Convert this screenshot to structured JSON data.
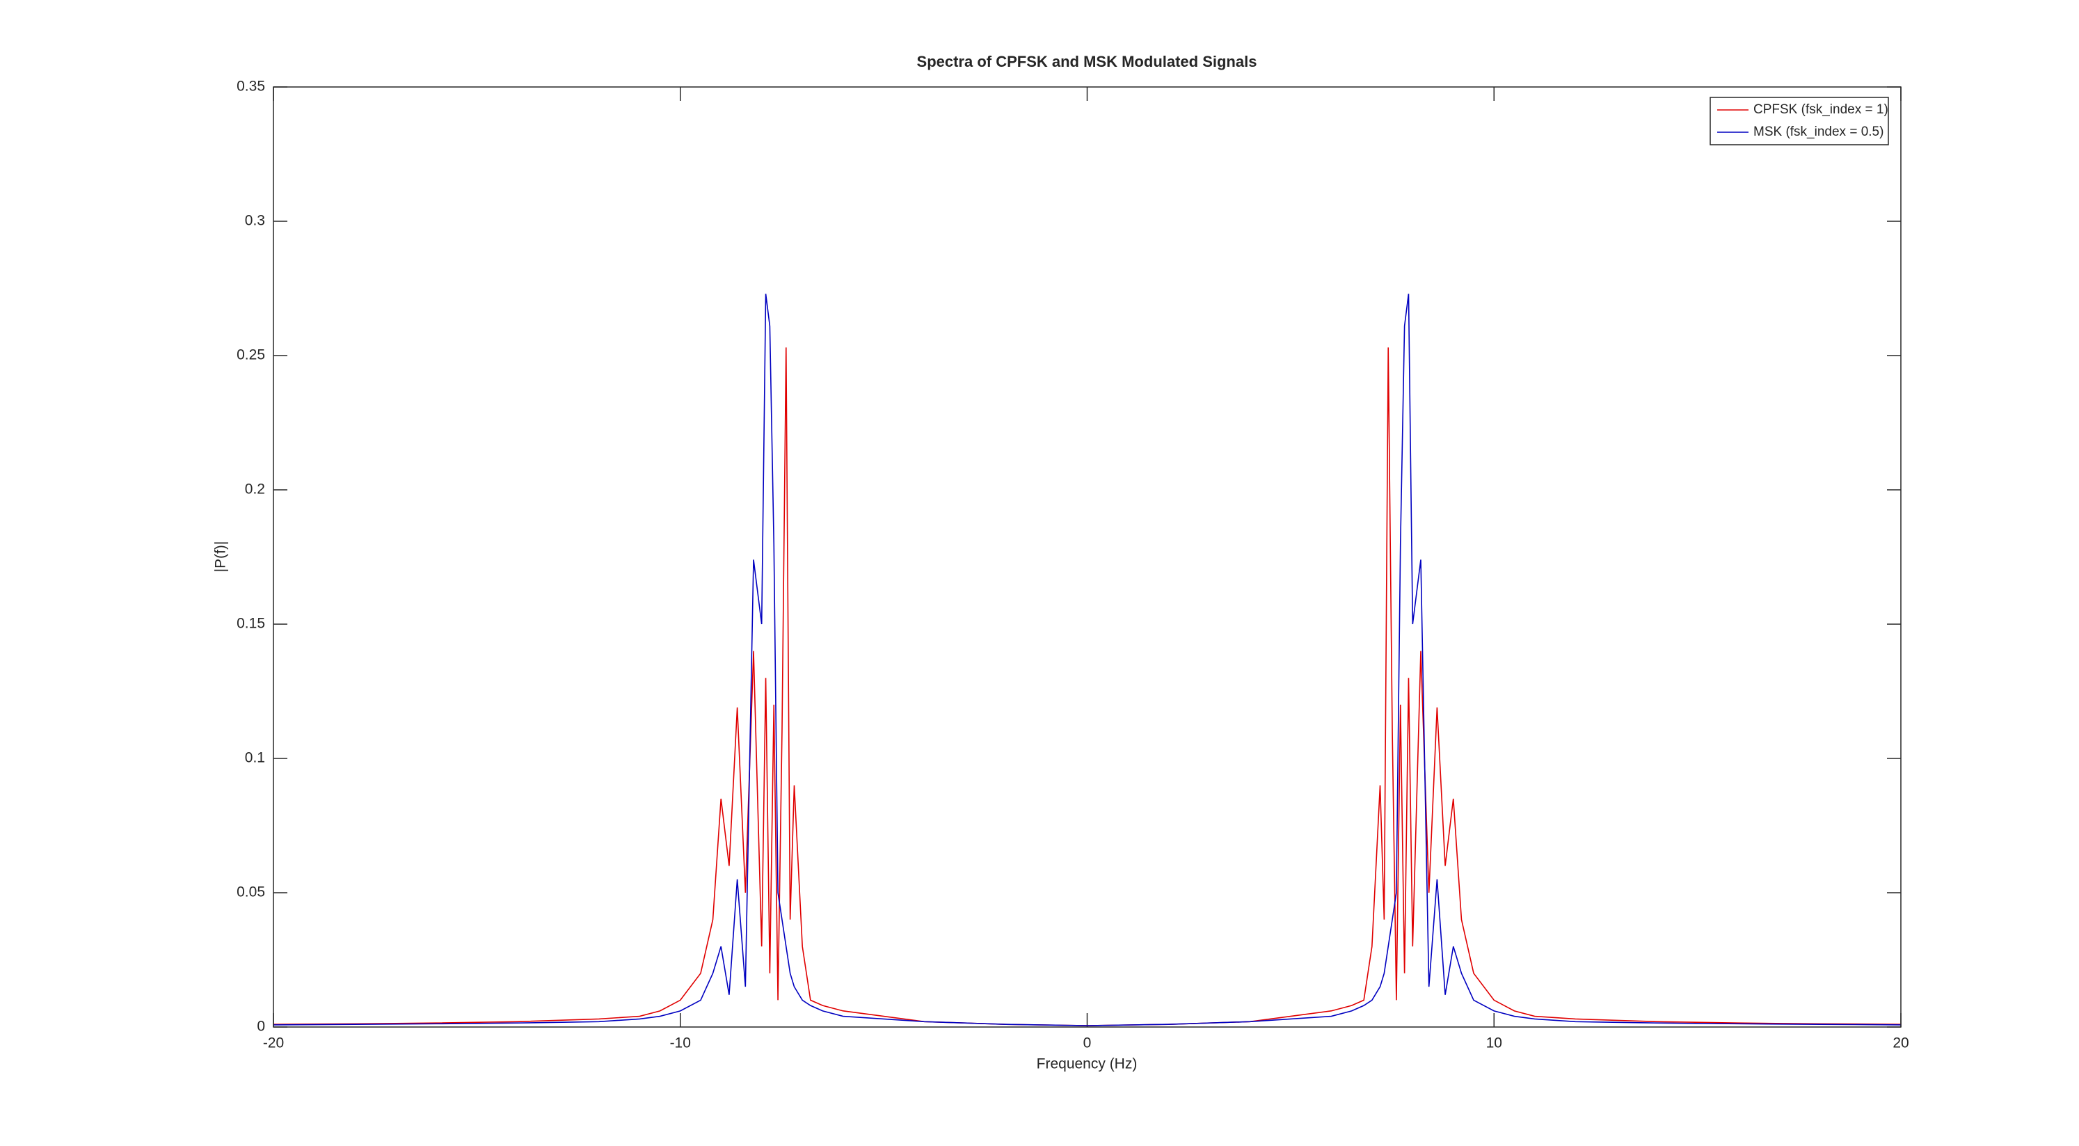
{
  "chart_data": {
    "type": "line",
    "title": "Spectra of CPFSK and MSK Modulated Signals",
    "x_label": "Frequency (Hz)",
    "y_label": "|P(f)|",
    "x": [
      -20,
      -18,
      -16,
      -14,
      -12,
      -11,
      -10.5,
      -10,
      -9.5,
      -9.2,
      -9,
      -8.8,
      -8.6,
      -8.4,
      -8.2,
      -8,
      -7.9,
      -7.8,
      -7.7,
      -7.6,
      -7.5,
      -7.4,
      -7.3,
      -7.2,
      -7,
      -6.8,
      -6.5,
      -6,
      -5,
      -4,
      -2,
      0,
      2,
      4,
      5,
      6,
      6.5,
      6.8,
      7,
      7.2,
      7.3,
      7.4,
      7.5,
      7.6,
      7.7,
      7.8,
      7.9,
      8,
      8.2,
      8.4,
      8.6,
      8.8,
      9,
      9.2,
      9.5,
      10,
      10.5,
      11,
      12,
      14,
      16,
      18,
      20
    ],
    "series": [
      {
        "name": "CPFSK (fsk_index = 1)",
        "color": "#e00000",
        "values": [
          0.001,
          0.0012,
          0.0015,
          0.002,
          0.003,
          0.004,
          0.006,
          0.01,
          0.02,
          0.04,
          0.085,
          0.06,
          0.119,
          0.05,
          0.14,
          0.03,
          0.13,
          0.02,
          0.12,
          0.01,
          0.11,
          0.253,
          0.04,
          0.09,
          0.03,
          0.01,
          0.008,
          0.006,
          0.004,
          0.002,
          0.001,
          0.0005,
          0.001,
          0.002,
          0.004,
          0.006,
          0.008,
          0.01,
          0.03,
          0.09,
          0.04,
          0.253,
          0.11,
          0.01,
          0.12,
          0.02,
          0.13,
          0.03,
          0.14,
          0.05,
          0.119,
          0.06,
          0.085,
          0.04,
          0.02,
          0.01,
          0.006,
          0.004,
          0.003,
          0.002,
          0.0015,
          0.0012,
          0.001
        ]
      },
      {
        "name": "MSK (fsk_index = 0.5)",
        "color": "#0000c0",
        "values": [
          0.0008,
          0.001,
          0.0012,
          0.0015,
          0.002,
          0.003,
          0.004,
          0.006,
          0.01,
          0.02,
          0.03,
          0.012,
          0.055,
          0.015,
          0.174,
          0.15,
          0.273,
          0.261,
          0.18,
          0.05,
          0.04,
          0.03,
          0.02,
          0.015,
          0.01,
          0.008,
          0.006,
          0.004,
          0.003,
          0.002,
          0.001,
          0.0005,
          0.001,
          0.002,
          0.003,
          0.004,
          0.006,
          0.008,
          0.01,
          0.015,
          0.02,
          0.03,
          0.04,
          0.05,
          0.18,
          0.261,
          0.273,
          0.15,
          0.174,
          0.015,
          0.055,
          0.012,
          0.03,
          0.02,
          0.01,
          0.006,
          0.004,
          0.003,
          0.002,
          0.0015,
          0.0012,
          0.001,
          0.0008
        ]
      }
    ],
    "xlim": [
      -20,
      20
    ],
    "xticks": [
      -20,
      -10,
      0,
      10,
      20
    ],
    "ylim": [
      0,
      0.35
    ],
    "yticks": [
      0,
      0.05,
      0.1,
      0.15,
      0.2,
      0.25,
      0.3,
      0.35
    ],
    "legend": "upper right",
    "grid": false
  }
}
